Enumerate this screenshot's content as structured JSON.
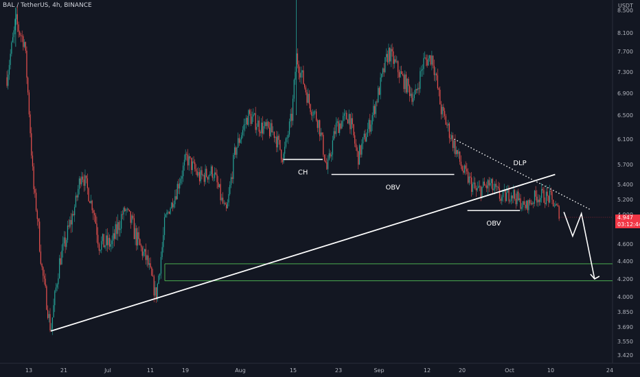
{
  "header": {
    "symbol": "BAL / TetherUS, 4h, BINANCE",
    "unit": "USDT"
  },
  "price_label": {
    "price": "4.947",
    "countdown": "03:12:44"
  },
  "colors": {
    "background": "#131722",
    "up": "#26a69a",
    "down": "#ef5350",
    "level_lines": "#4caf50",
    "annotation": "#ffffff",
    "price_tag": "#f23645"
  },
  "chart_data": {
    "type": "candlestick",
    "title": "BAL / TetherUS, 4h, BINANCE",
    "ylabel": "USDT",
    "y_ticks": [
      "8.500",
      "8.100",
      "7.700",
      "7.300",
      "6.900",
      "6.500",
      "6.100",
      "5.700",
      "5.400",
      "5.200",
      "4.900",
      "4.600",
      "4.400",
      "4.200",
      "4.000",
      "3.850",
      "3.690",
      "3.550",
      "3.420"
    ],
    "x_ticks": [
      "13",
      "21",
      "Jul",
      "11",
      "19",
      "Aug",
      "15",
      "23",
      "Sep",
      "12",
      "20",
      "Oct",
      "10",
      "24"
    ],
    "ylim": [
      3.34,
      8.7
    ],
    "grid": false,
    "close_path": [
      {
        "x": "Jun 8",
        "y": 7.2
      },
      {
        "x": "Jun 10",
        "y": 8.3
      },
      {
        "x": "Jun 12",
        "y": 7.9
      },
      {
        "x": "Jun 14",
        "y": 5.4
      },
      {
        "x": "Jun 16",
        "y": 4.3
      },
      {
        "x": "Jun 18",
        "y": 3.65
      },
      {
        "x": "Jun 20",
        "y": 4.4
      },
      {
        "x": "Jun 23",
        "y": 4.9
      },
      {
        "x": "Jun 25",
        "y": 5.6
      },
      {
        "x": "Jun 27",
        "y": 5.2
      },
      {
        "x": "Jun 29",
        "y": 4.6
      },
      {
        "x": "Jul 2",
        "y": 4.6
      },
      {
        "x": "Jul 5",
        "y": 5.0
      },
      {
        "x": "Jul 8",
        "y": 4.6
      },
      {
        "x": "Jul 10",
        "y": 4.4
      },
      {
        "x": "Jul 12",
        "y": 4.0
      },
      {
        "x": "Jul 14",
        "y": 4.8
      },
      {
        "x": "Jul 17",
        "y": 5.4
      },
      {
        "x": "Jul 19",
        "y": 5.8
      },
      {
        "x": "Jul 22",
        "y": 5.5
      },
      {
        "x": "Jul 25",
        "y": 5.6
      },
      {
        "x": "Jul 28",
        "y": 4.95
      },
      {
        "x": "Jul 30",
        "y": 5.9
      },
      {
        "x": "Aug 2",
        "y": 6.5
      },
      {
        "x": "Aug 5",
        "y": 6.3
      },
      {
        "x": "Aug 8",
        "y": 6.2
      },
      {
        "x": "Aug 10",
        "y": 5.8
      },
      {
        "x": "Aug 12",
        "y": 6.5
      },
      {
        "x": "Aug 13",
        "y": 7.6
      },
      {
        "x": "Aug 16",
        "y": 6.7
      },
      {
        "x": "Aug 18",
        "y": 6.4
      },
      {
        "x": "Aug 20",
        "y": 5.6
      },
      {
        "x": "Aug 22",
        "y": 6.3
      },
      {
        "x": "Aug 25",
        "y": 6.5
      },
      {
        "x": "Aug 27",
        "y": 5.8
      },
      {
        "x": "Aug 30",
        "y": 6.4
      },
      {
        "x": "Sep 1",
        "y": 7.0
      },
      {
        "x": "Sep 3",
        "y": 7.7
      },
      {
        "x": "Sep 6",
        "y": 7.2
      },
      {
        "x": "Sep 9",
        "y": 6.8
      },
      {
        "x": "Sep 11",
        "y": 7.5
      },
      {
        "x": "Sep 13",
        "y": 7.6
      },
      {
        "x": "Sep 15",
        "y": 6.6
      },
      {
        "x": "Sep 18",
        "y": 6.0
      },
      {
        "x": "Sep 20",
        "y": 5.6
      },
      {
        "x": "Sep 23",
        "y": 5.3
      },
      {
        "x": "Sep 26",
        "y": 5.4
      },
      {
        "x": "Sep 29",
        "y": 5.2
      },
      {
        "x": "Oct 1",
        "y": 5.3
      },
      {
        "x": "Oct 4",
        "y": 5.05
      },
      {
        "x": "Oct 7",
        "y": 5.25
      },
      {
        "x": "Oct 10",
        "y": 5.2
      },
      {
        "x": "Oct 12",
        "y": 4.95
      }
    ],
    "annotations": {
      "trendline": {
        "from": {
          "x": "Jun 18",
          "y": 3.65
        },
        "to": {
          "x": "Oct 11",
          "y": 5.55
        }
      },
      "dotted_trendline": {
        "label": "DLP",
        "from": {
          "x": "Sep 18",
          "y": 6.1
        },
        "to": {
          "x": "Oct 19",
          "y": 5.0
        }
      },
      "horizontal_levels": [
        {
          "label": "CH",
          "y": 5.78,
          "from": "Aug 10",
          "to": "Aug 19"
        },
        {
          "label": "OBV",
          "y": 5.55,
          "from": "Aug 21",
          "to": "Sep 18"
        },
        {
          "label": "OBV",
          "y": 4.98,
          "from": "Sep 21",
          "to": "Oct 3"
        }
      ],
      "support_zone": {
        "top": 4.37,
        "bottom": 4.18,
        "from": "Jul 14",
        "to": "Oct 24"
      },
      "projection": [
        {
          "x": "Oct 13",
          "y": 4.95
        },
        {
          "x": "Oct 15",
          "y": 4.68
        },
        {
          "x": "Oct 17",
          "y": 4.92
        },
        {
          "x": "Oct 20",
          "y": 4.2
        }
      ]
    }
  }
}
